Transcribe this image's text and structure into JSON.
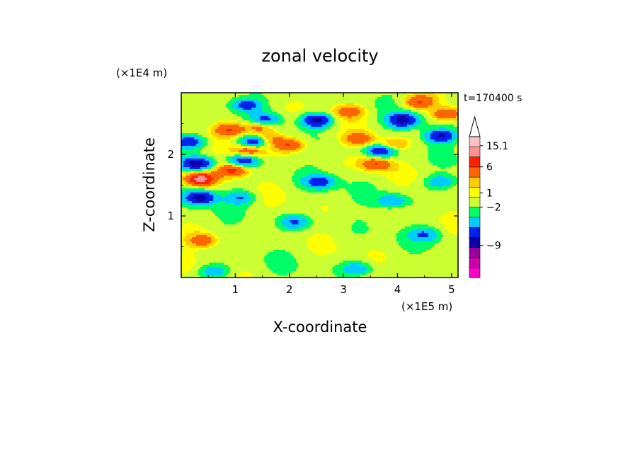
{
  "chart_data": {
    "type": "heatmap",
    "title": "zonal velocity",
    "xlabel": "X-coordinate",
    "ylabel": "Z-coordinate",
    "x_unit_label": "(×1E5 m)",
    "y_unit_label": "(×1E4 m)",
    "time_label": "t=170400 s",
    "x_ticks": [
      "1",
      "2",
      "3",
      "4",
      "5"
    ],
    "x_tick_values": [
      1,
      2,
      3,
      4,
      5
    ],
    "y_ticks": [
      "1",
      "2"
    ],
    "y_tick_values": [
      1,
      2
    ],
    "xlim": [
      0,
      5.12
    ],
    "ylim": [
      0,
      3.0
    ],
    "colorbar": {
      "levels_colors": [
        "#ff00cc",
        "#cc00aa",
        "#990099",
        "#1000aa",
        "#0022ee",
        "#00ccff",
        "#00ff66",
        "#ccff33",
        "#ffff00",
        "#ffcc00",
        "#ff6600",
        "#ff2200",
        "#ff9090",
        "#ffc0c0"
      ],
      "tick_labels": [
        "15.1",
        "6",
        "1",
        "−2",
        "−9"
      ],
      "tick_values": [
        15.1,
        6,
        1,
        -2,
        -9
      ],
      "extend": "max"
    },
    "features": [
      {
        "x": 0.35,
        "z": 1.3,
        "u": -6
      },
      {
        "x": 0.35,
        "z": 1.6,
        "u": 7
      },
      {
        "x": 0.3,
        "z": 1.85,
        "u": -6
      },
      {
        "x": 0.15,
        "z": 2.2,
        "u": -5
      },
      {
        "x": 0.95,
        "z": 1.75,
        "u": 5
      },
      {
        "x": 0.9,
        "z": 2.4,
        "u": 4
      },
      {
        "x": 1.15,
        "z": 1.9,
        "u": -5
      },
      {
        "x": 1.25,
        "z": 2.05,
        "u": 4
      },
      {
        "x": 1.35,
        "z": 2.2,
        "u": -5
      },
      {
        "x": 1.45,
        "z": 2.45,
        "u": 4
      },
      {
        "x": 1.2,
        "z": 2.8,
        "u": -4
      },
      {
        "x": 1.55,
        "z": 2.55,
        "u": -4
      },
      {
        "x": 1.6,
        "z": 2.25,
        "u": 3
      },
      {
        "x": 2.5,
        "z": 2.55,
        "u": -6
      },
      {
        "x": 3.3,
        "z": 2.25,
        "u": 3
      },
      {
        "x": 3.6,
        "z": 1.85,
        "u": 4
      },
      {
        "x": 3.7,
        "z": 2.05,
        "u": -5
      },
      {
        "x": 4.1,
        "z": 2.55,
        "u": -6
      },
      {
        "x": 4.8,
        "z": 2.3,
        "u": -5
      },
      {
        "x": 4.9,
        "z": 2.65,
        "u": 4
      },
      {
        "x": 4.4,
        "z": 2.85,
        "u": 4
      },
      {
        "x": 2.0,
        "z": 2.15,
        "u": 4
      },
      {
        "x": 2.55,
        "z": 1.55,
        "u": -4
      },
      {
        "x": 3.9,
        "z": 1.25,
        "u": -3
      },
      {
        "x": 1.1,
        "z": 1.3,
        "u": -3
      },
      {
        "x": 0.4,
        "z": 0.6,
        "u": 3
      },
      {
        "x": 4.8,
        "z": 1.55,
        "u": -3
      },
      {
        "x": 3.25,
        "z": 0.15,
        "u": -3
      },
      {
        "x": 4.5,
        "z": 0.7,
        "u": -3
      },
      {
        "x": 2.1,
        "z": 0.9,
        "u": -3
      },
      {
        "x": 0.6,
        "z": 0.1,
        "u": -3
      },
      {
        "x": 3.1,
        "z": 2.7,
        "u": 3
      },
      {
        "x": 3.9,
        "z": 2.15,
        "u": 2.5
      }
    ]
  }
}
